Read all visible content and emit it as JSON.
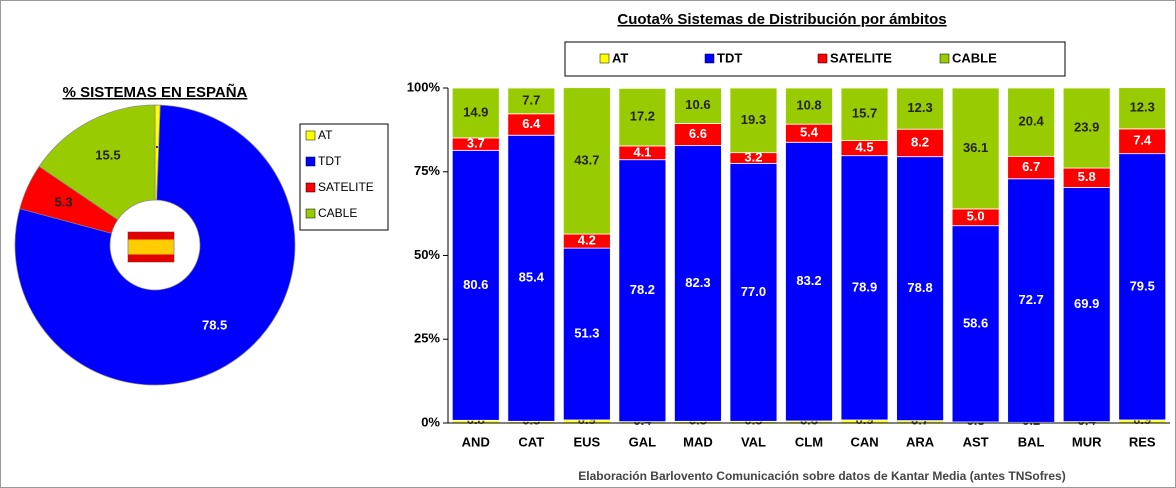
{
  "chart_data": [
    {
      "type": "pie",
      "title": "% SISTEMAS EN ESPAÑA",
      "categories": [
        "AT",
        "TDT",
        "SATELITE",
        "CABLE"
      ],
      "values": [
        0.6,
        78.5,
        5.3,
        15.5
      ],
      "colors": [
        "#ffff00",
        "#0000ff",
        "#ff0000",
        "#99cc00"
      ],
      "donut": true,
      "legend": "right"
    },
    {
      "type": "stacked_bar",
      "title": "Cuota% Sistemas de Distribución por ámbitos",
      "categories": [
        "AND",
        "CAT",
        "EUS",
        "GAL",
        "MAD",
        "VAL",
        "CLM",
        "CAN",
        "ARA",
        "AST",
        "BAL",
        "MUR",
        "RES"
      ],
      "series": [
        {
          "name": "AT",
          "color": "#ffff00",
          "values": [
            0.8,
            0.5,
            0.9,
            0.4,
            0.5,
            0.5,
            0.6,
            0.9,
            0.7,
            0.3,
            0.2,
            0.4,
            0.9
          ]
        },
        {
          "name": "TDT",
          "color": "#0000ff",
          "values": [
            80.6,
            85.4,
            51.3,
            78.2,
            82.3,
            77,
            83.2,
            78.9,
            78.8,
            58.6,
            72.7,
            69.9,
            79.5
          ],
          "value_labels": [
            "80.6",
            "85.4",
            "51.3",
            "78.2",
            "82.3",
            "77.0",
            "83.2",
            "78.9",
            "78.8",
            "58.6",
            "72.7",
            "69.9",
            "79.5"
          ]
        },
        {
          "name": "SATELITE",
          "color": "#ff0000",
          "values": [
            3.7,
            6.4,
            4.2,
            4.1,
            6.6,
            3.2,
            5.4,
            4.5,
            8.2,
            5,
            6.7,
            5.8,
            7.4
          ],
          "value_labels": [
            "3.7",
            "6.4",
            "4.2",
            "4.1",
            "6.6",
            "3.2",
            "5.4",
            "4.5",
            "8.2",
            "5.0",
            "6.7",
            "5.8",
            "7.4"
          ]
        },
        {
          "name": "CABLE",
          "color": "#99cc00",
          "values": [
            14.9,
            7.7,
            43.7,
            17.2,
            10.6,
            19.3,
            10.8,
            15.7,
            12.3,
            36.1,
            20.4,
            23.9,
            12.3
          ]
        }
      ],
      "ylim": [
        0,
        100
      ],
      "yticks": [
        {
          "value": 0,
          "label": "0%"
        },
        {
          "value": 25,
          "label": "25%"
        },
        {
          "value": 50,
          "label": "50%"
        },
        {
          "value": 75,
          "label": "75%"
        },
        {
          "value": 100,
          "label": "100%"
        }
      ],
      "grid": false,
      "legend": "top",
      "note": "Elaboración Barlovento Comunicación sobre datos de Kantar Media (antes TNSofres)"
    }
  ]
}
